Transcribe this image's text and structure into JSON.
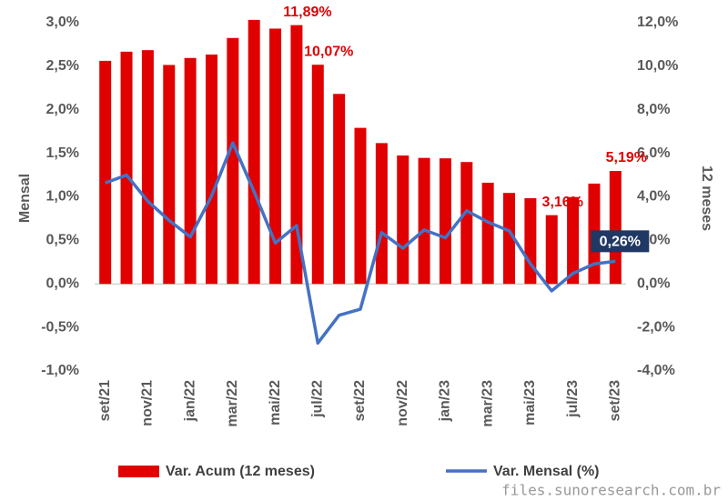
{
  "chart_data": {
    "type": "bar",
    "categories": [
      "set/21",
      null,
      "nov/21",
      null,
      "jan/22",
      null,
      "mar/22",
      null,
      "mai/22",
      null,
      "jul/22",
      null,
      "set/22",
      null,
      "nov/22",
      null,
      "jan/23",
      null,
      "mar/23",
      null,
      "mai/23",
      null,
      "jul/23",
      null,
      "set/23"
    ],
    "series": [
      {
        "name": "Var. Acum (12 meses)",
        "type": "bar",
        "axis": "y2",
        "color": "#e00000",
        "values": [
          10.25,
          10.67,
          10.74,
          10.06,
          10.38,
          10.54,
          11.3,
          12.13,
          11.73,
          11.89,
          10.07,
          8.73,
          7.17,
          6.47,
          5.9,
          5.79,
          5.77,
          5.6,
          4.65,
          4.18,
          3.94,
          3.16,
          3.99,
          4.61,
          5.19
        ],
        "value_labels": [
          null,
          null,
          null,
          null,
          null,
          null,
          null,
          null,
          null,
          "11,89%",
          "10,07%",
          null,
          null,
          null,
          null,
          null,
          null,
          null,
          null,
          null,
          null,
          "3,16%",
          null,
          null,
          "5,19%"
        ]
      },
      {
        "name": "Var. Mensal (%)",
        "type": "line",
        "color": "#4472c4",
        "values": [
          1.16,
          1.25,
          0.95,
          0.73,
          0.54,
          1.01,
          1.62,
          1.06,
          0.47,
          0.67,
          -0.68,
          -0.36,
          -0.29,
          0.59,
          0.41,
          0.62,
          0.53,
          0.84,
          0.71,
          0.61,
          0.23,
          -0.08,
          0.12,
          0.23,
          0.26
        ],
        "value_labels": [
          null,
          null,
          null,
          null,
          null,
          null,
          null,
          null,
          null,
          null,
          null,
          null,
          null,
          null,
          null,
          null,
          null,
          null,
          null,
          null,
          null,
          null,
          null,
          null,
          "0,26%"
        ]
      }
    ],
    "ylabel": "Mensal",
    "y2label": "12 meses",
    "ylim": [
      -1,
      3
    ],
    "yticks": [
      {
        "value": -1,
        "label": "-1,0%"
      },
      {
        "value": -0.5,
        "label": "-0,5%"
      },
      {
        "value": 0,
        "label": "0,0%"
      },
      {
        "value": 0.5,
        "label": "0,5%"
      },
      {
        "value": 1,
        "label": "1,0%"
      },
      {
        "value": 1.5,
        "label": "1,5%"
      },
      {
        "value": 2,
        "label": "2,0%"
      },
      {
        "value": 2.5,
        "label": "2,5%"
      },
      {
        "value": 3,
        "label": "3,0%"
      }
    ],
    "y2lim": [
      -4,
      12
    ],
    "y2ticks": [
      {
        "value": -4,
        "label": "-4,0%"
      },
      {
        "value": -2,
        "label": "-2,0%"
      },
      {
        "value": 0,
        "label": "0,0%"
      },
      {
        "value": 2,
        "label": "2,0%"
      },
      {
        "value": 4,
        "label": "4,0%"
      },
      {
        "value": 6,
        "label": "6,0%"
      },
      {
        "value": 8,
        "label": "8,0%"
      },
      {
        "value": 10,
        "label": "10,0%"
      },
      {
        "value": 12,
        "label": "12,0%"
      }
    ],
    "legend": "bottom",
    "watermark": "files.sunoresearch.com.br"
  }
}
